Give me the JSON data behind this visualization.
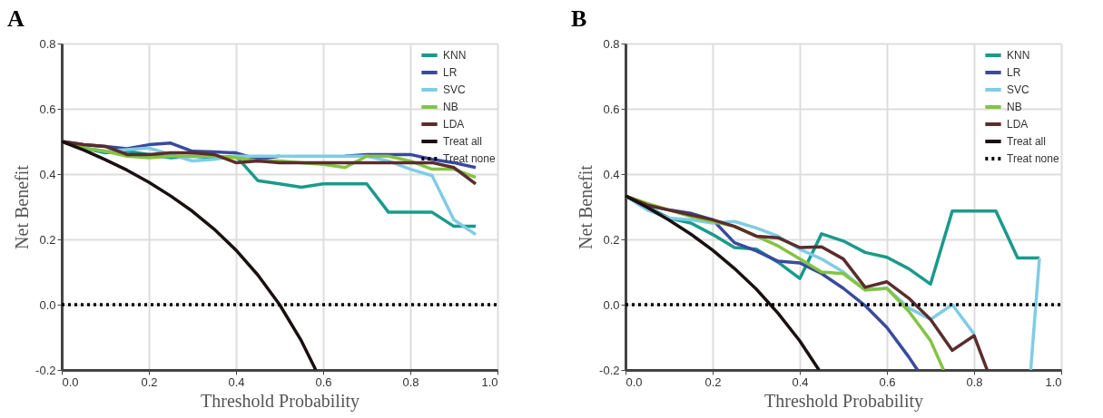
{
  "chart_data": [
    {
      "type": "line",
      "title": "A",
      "xlabel": "Threshold Probability",
      "ylabel": "Net Benefit",
      "x": [
        0,
        0.05,
        0.1,
        0.15,
        0.2,
        0.25,
        0.3,
        0.35,
        0.4,
        0.45,
        0.5,
        0.55,
        0.6,
        0.65,
        0.7,
        0.75,
        0.8,
        0.85,
        0.9,
        0.95
      ],
      "series": [
        {
          "name": "KNN",
          "color": "#1a9a8a",
          "values": [
            0.5,
            0.48,
            0.465,
            0.47,
            0.46,
            0.45,
            0.455,
            0.45,
            0.455,
            0.38,
            0.37,
            0.36,
            0.37,
            0.37,
            0.37,
            0.283,
            0.283,
            0.283,
            0.24,
            0.24
          ]
        },
        {
          "name": "LR",
          "color": "#3a4a9e",
          "values": [
            0.5,
            0.49,
            0.485,
            0.478,
            0.49,
            0.495,
            0.47,
            0.468,
            0.465,
            0.445,
            0.455,
            null,
            null,
            0.455,
            0.46,
            0.46,
            0.46,
            0.445,
            0.435,
            0.42
          ]
        },
        {
          "name": "SVC",
          "color": "#80cce6",
          "values": [
            0.5,
            0.48,
            0.47,
            0.475,
            0.48,
            0.46,
            0.44,
            0.445,
            0.455,
            0.455,
            0.455,
            0.455,
            0.455,
            0.455,
            0.455,
            0.44,
            0.415,
            0.395,
            0.26,
            0.215
          ]
        },
        {
          "name": "NB",
          "color": "#84c441",
          "values": [
            0.5,
            0.48,
            0.47,
            0.455,
            0.45,
            0.455,
            0.455,
            0.455,
            0.45,
            0.44,
            0.44,
            0.435,
            0.43,
            0.42,
            0.455,
            0.455,
            0.44,
            0.415,
            0.415,
            0.39
          ]
        },
        {
          "name": "LDA",
          "color": "#5a2d2d",
          "values": [
            0.5,
            0.49,
            0.485,
            0.46,
            0.46,
            0.465,
            0.465,
            0.46,
            0.435,
            0.44,
            0.435,
            0.435,
            0.435,
            0.435,
            0.435,
            0.435,
            0.435,
            0.435,
            0.42,
            0.37
          ]
        },
        {
          "name": "Treat all",
          "color": "#1a1010",
          "x": [
            0,
            0.05,
            0.1,
            0.15,
            0.2,
            0.25,
            0.3,
            0.35,
            0.4,
            0.45,
            0.5,
            0.55,
            0.583
          ],
          "values": [
            0.5,
            0.474,
            0.444,
            0.412,
            0.375,
            0.333,
            0.286,
            0.231,
            0.167,
            0.091,
            0,
            -0.111,
            -0.2
          ]
        },
        {
          "name": "Treat none",
          "color": "#000000",
          "line_style": "dotted",
          "x": [
            0,
            1
          ],
          "values": [
            0,
            0
          ]
        }
      ],
      "xlim": [
        0,
        1
      ],
      "xticks": [
        {
          "value": 0,
          "label": "0.0"
        },
        {
          "value": 0.2,
          "label": "0.2"
        },
        {
          "value": 0.4,
          "label": "0.4"
        },
        {
          "value": 0.6,
          "label": "0.6"
        },
        {
          "value": 0.8,
          "label": "0.8"
        },
        {
          "value": 1,
          "label": "1.0"
        }
      ],
      "ylim": [
        -0.2,
        0.8
      ],
      "yticks": [
        {
          "value": -0.2,
          "label": "-0.2"
        },
        {
          "value": 0,
          "label": "0.0"
        },
        {
          "value": 0.2,
          "label": "0.2"
        },
        {
          "value": 0.4,
          "label": "0.4"
        },
        {
          "value": 0.6,
          "label": "0.6"
        },
        {
          "value": 0.8,
          "label": "0.8"
        }
      ],
      "grid": true,
      "legend": "top right",
      "line_style": "solid"
    },
    {
      "type": "line",
      "title": "B",
      "xlabel": "Threshold Probability",
      "ylabel": "Net Benefit",
      "x": [
        0,
        0.05,
        0.1,
        0.15,
        0.2,
        0.25,
        0.3,
        0.35,
        0.4,
        0.45,
        0.5,
        0.55,
        0.6,
        0.65,
        0.7,
        0.75,
        0.8,
        0.85,
        0.9,
        0.95
      ],
      "series": [
        {
          "name": "KNN",
          "color": "#1a9a8a",
          "values": [
            0.333,
            0.3,
            0.265,
            0.25,
            0.215,
            0.175,
            0.17,
            0.13,
            0.08,
            0.217,
            0.195,
            0.16,
            0.145,
            0.11,
            0.063,
            0.287,
            0.287,
            0.287,
            0.143,
            0.143
          ]
        },
        {
          "name": "LR",
          "color": "#3a4a9e",
          "x": [
            0,
            0.05,
            0.1,
            0.15,
            0.2,
            0.25,
            0.3,
            0.35,
            0.4,
            0.45,
            0.5,
            0.55,
            0.6,
            0.65,
            0.67
          ],
          "values": [
            0.333,
            0.305,
            0.29,
            0.28,
            0.26,
            0.19,
            0.165,
            0.133,
            0.128,
            0.095,
            0.05,
            -0.003,
            -0.07,
            -0.16,
            -0.2
          ]
        },
        {
          "name": "SVC",
          "color": "#80cce6",
          "x": [
            0,
            0.05,
            0.1,
            0.15,
            0.2,
            0.25,
            0.3,
            0.35,
            0.4,
            0.45,
            0.5,
            0.55,
            0.6,
            0.65,
            0.7,
            0.75,
            0.8,
            0.85,
            0.93,
            0.95
          ],
          "values": [
            0.333,
            0.29,
            0.265,
            0.26,
            0.25,
            0.255,
            0.235,
            0.21,
            0.17,
            0.14,
            0.1,
            0.045,
            0.05,
            -0.01,
            -0.045,
            0,
            -0.09,
            null,
            -0.2,
            0.143
          ]
        },
        {
          "name": "NB",
          "color": "#84c441",
          "x": [
            0,
            0.05,
            0.1,
            0.15,
            0.2,
            0.25,
            0.3,
            0.35,
            0.4,
            0.45,
            0.5,
            0.55,
            0.6,
            0.65,
            0.7,
            0.73
          ],
          "values": [
            0.333,
            0.31,
            0.29,
            0.27,
            0.255,
            0.24,
            0.21,
            0.18,
            0.14,
            0.1,
            0.095,
            0.045,
            0.05,
            -0.02,
            -0.11,
            -0.2
          ]
        },
        {
          "name": "LDA",
          "color": "#5a2d2d",
          "x": [
            0,
            0.05,
            0.1,
            0.15,
            0.2,
            0.25,
            0.3,
            0.35,
            0.4,
            0.45,
            0.5,
            0.55,
            0.6,
            0.65,
            0.7,
            0.75,
            0.8,
            0.83
          ],
          "values": [
            0.333,
            0.305,
            0.29,
            0.275,
            0.26,
            0.24,
            0.21,
            0.205,
            0.175,
            0.177,
            0.14,
            0.053,
            0.07,
            0.02,
            -0.045,
            -0.14,
            -0.095,
            -0.2
          ]
        },
        {
          "name": "Treat all",
          "color": "#1a1010",
          "x": [
            0,
            0.05,
            0.1,
            0.15,
            0.2,
            0.25,
            0.3,
            0.35,
            0.4,
            0.444
          ],
          "values": [
            0.333,
            0.298,
            0.259,
            0.216,
            0.167,
            0.111,
            0.048,
            -0.026,
            -0.111,
            -0.2
          ]
        },
        {
          "name": "Treat none",
          "color": "#000000",
          "line_style": "dotted",
          "x": [
            0,
            1
          ],
          "values": [
            0,
            0
          ]
        }
      ],
      "xlim": [
        0,
        1
      ],
      "xticks": [
        {
          "value": 0,
          "label": "0.0"
        },
        {
          "value": 0.2,
          "label": "0.2"
        },
        {
          "value": 0.4,
          "label": "0.4"
        },
        {
          "value": 0.6,
          "label": "0.6"
        },
        {
          "value": 0.8,
          "label": "0.8"
        },
        {
          "value": 1,
          "label": "1.0"
        }
      ],
      "ylim": [
        -0.2,
        0.8
      ],
      "yticks": [
        {
          "value": -0.2,
          "label": "-0.2"
        },
        {
          "value": 0,
          "label": "0.0"
        },
        {
          "value": 0.2,
          "label": "0.2"
        },
        {
          "value": 0.4,
          "label": "0.4"
        },
        {
          "value": 0.6,
          "label": "0.6"
        },
        {
          "value": 0.8,
          "label": "0.8"
        }
      ],
      "grid": true,
      "legend": "top right",
      "line_style": "solid"
    }
  ]
}
